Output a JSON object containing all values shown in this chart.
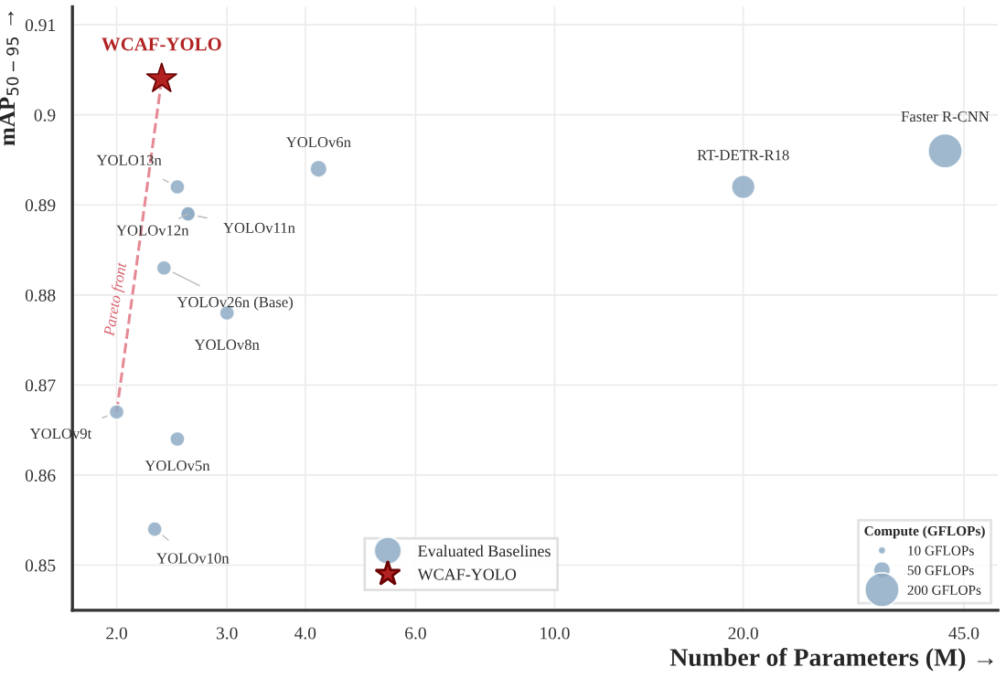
{
  "chart_data": {
    "type": "bubble",
    "xlabel": "Number of Parameters (M) →",
    "ylabel": "mAP$_{50−95}$ →",
    "log": "x",
    "grid": true,
    "legend": "bottom",
    "legend_title": "Compute (GFLOPs)",
    "xlim": [
      1.7,
      51
    ],
    "xticks": [
      {
        "value": 2,
        "label": "2.0"
      },
      {
        "value": 3,
        "label": "3.0"
      },
      {
        "value": 4,
        "label": "4.0"
      },
      {
        "value": 6,
        "label": "6.0"
      },
      {
        "value": 10,
        "label": "10.0"
      },
      {
        "value": 20,
        "label": "20.0"
      },
      {
        "value": 45,
        "label": "45.0"
      }
    ],
    "ylim": [
      0.845,
      0.912
    ],
    "yticks": [
      0.85,
      0.86,
      0.87,
      0.88,
      0.89,
      0.9,
      0.91
    ],
    "size_legend": [
      {
        "value": 10,
        "label": "10 GFLOPs"
      },
      {
        "value": 50,
        "label": "50 GFLOPs"
      },
      {
        "value": 200,
        "label": "200 GFLOPs"
      }
    ],
    "series": [
      {
        "name": "Pareto front",
        "type": "line",
        "color": "#e58a94",
        "line_style": "dashed",
        "marker": "none",
        "x": [
          2.0,
          2.36
        ],
        "values": [
          0.867,
          0.904
        ]
      },
      {
        "name": "Evaluated Baselines",
        "type": "bubble",
        "color": "#8eacc4",
        "marker": "circle",
        "x": [
          2.5,
          2.6,
          2.6,
          2.38,
          3.0,
          4.2,
          20,
          42,
          2.0,
          2.5,
          2.3
        ],
        "values": [
          0.892,
          0.889,
          0.889,
          0.883,
          0.878,
          0.894,
          0.892,
          0.896,
          0.867,
          0.864,
          0.854
        ],
        "sizes": [
          38,
          38,
          38,
          38,
          38,
          50,
          95,
          200,
          38,
          38,
          38
        ]
      },
      {
        "name": "WCAF-YOLO",
        "type": "scatter",
        "color": "#b22222",
        "marker": "star",
        "x": [
          2.36
        ],
        "values": [
          0.904
        ]
      }
    ],
    "annotations": [
      {
        "text": "WCAF-YOLO",
        "x": 2.36,
        "y": 0.904
      },
      {
        "text": "YOLO13n",
        "x": 2.5,
        "y": 0.892
      },
      {
        "text": "YOLOv12n",
        "x": 2.6,
        "y": 0.889
      },
      {
        "text": "YOLOv11n",
        "x": 2.6,
        "y": 0.889
      },
      {
        "text": "YOLOv26n (Base)",
        "x": 2.38,
        "y": 0.883
      },
      {
        "text": "YOLOv8n",
        "x": 3.0,
        "y": 0.878
      },
      {
        "text": "YOLOv6n",
        "x": 4.2,
        "y": 0.894
      },
      {
        "text": "RT-DETR-R18",
        "x": 20,
        "y": 0.892
      },
      {
        "text": "Faster R-CNN",
        "x": 42,
        "y": 0.896
      },
      {
        "text": "YOLOv9t",
        "x": 2.0,
        "y": 0.867
      },
      {
        "text": "YOLOv5n",
        "x": 2.5,
        "y": 0.864
      },
      {
        "text": "YOLOv10n",
        "x": 2.3,
        "y": 0.854
      }
    ]
  }
}
